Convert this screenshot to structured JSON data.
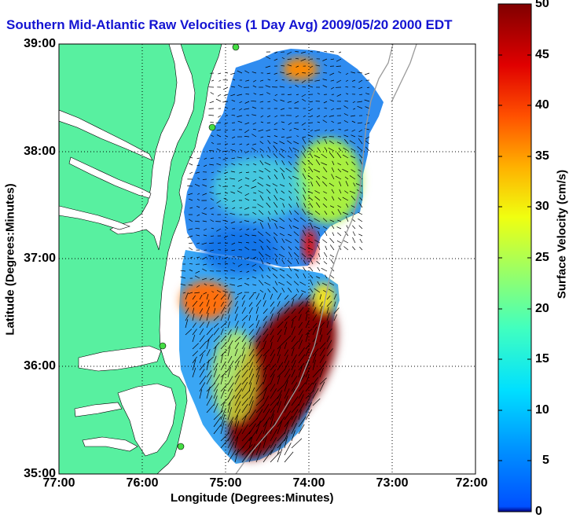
{
  "title": "Southern Mid-Atlantic Raw Velocities (1 Day Avg) 2009/05/20 2000 EDT",
  "map": {
    "y_ticks": [
      "39:00",
      "38:00",
      "37:00",
      "36:00",
      "35:00"
    ],
    "x_ticks": [
      "77:00",
      "76:00",
      "75:00",
      "74:00",
      "73:00",
      "72:00"
    ],
    "xlabel": "Longitude (Degrees:Minutes)",
    "ylabel": "Latitude (Degrees:Minutes)",
    "lon_range": [
      -77,
      -72
    ],
    "lat_range": [
      35,
      39
    ],
    "grid": "dotted"
  },
  "colorbar": {
    "label": "Surface Velocity (cm/s)",
    "ticks": [
      "50",
      "45",
      "40",
      "35",
      "30",
      "25",
      "20",
      "15",
      "10",
      "5",
      "0"
    ],
    "range": [
      0,
      50
    ],
    "colormap": "jet"
  },
  "colors": {
    "land": "#58f0a0",
    "water": "#ffffff",
    "title": "#1414d2",
    "station": "#44dd44"
  }
}
